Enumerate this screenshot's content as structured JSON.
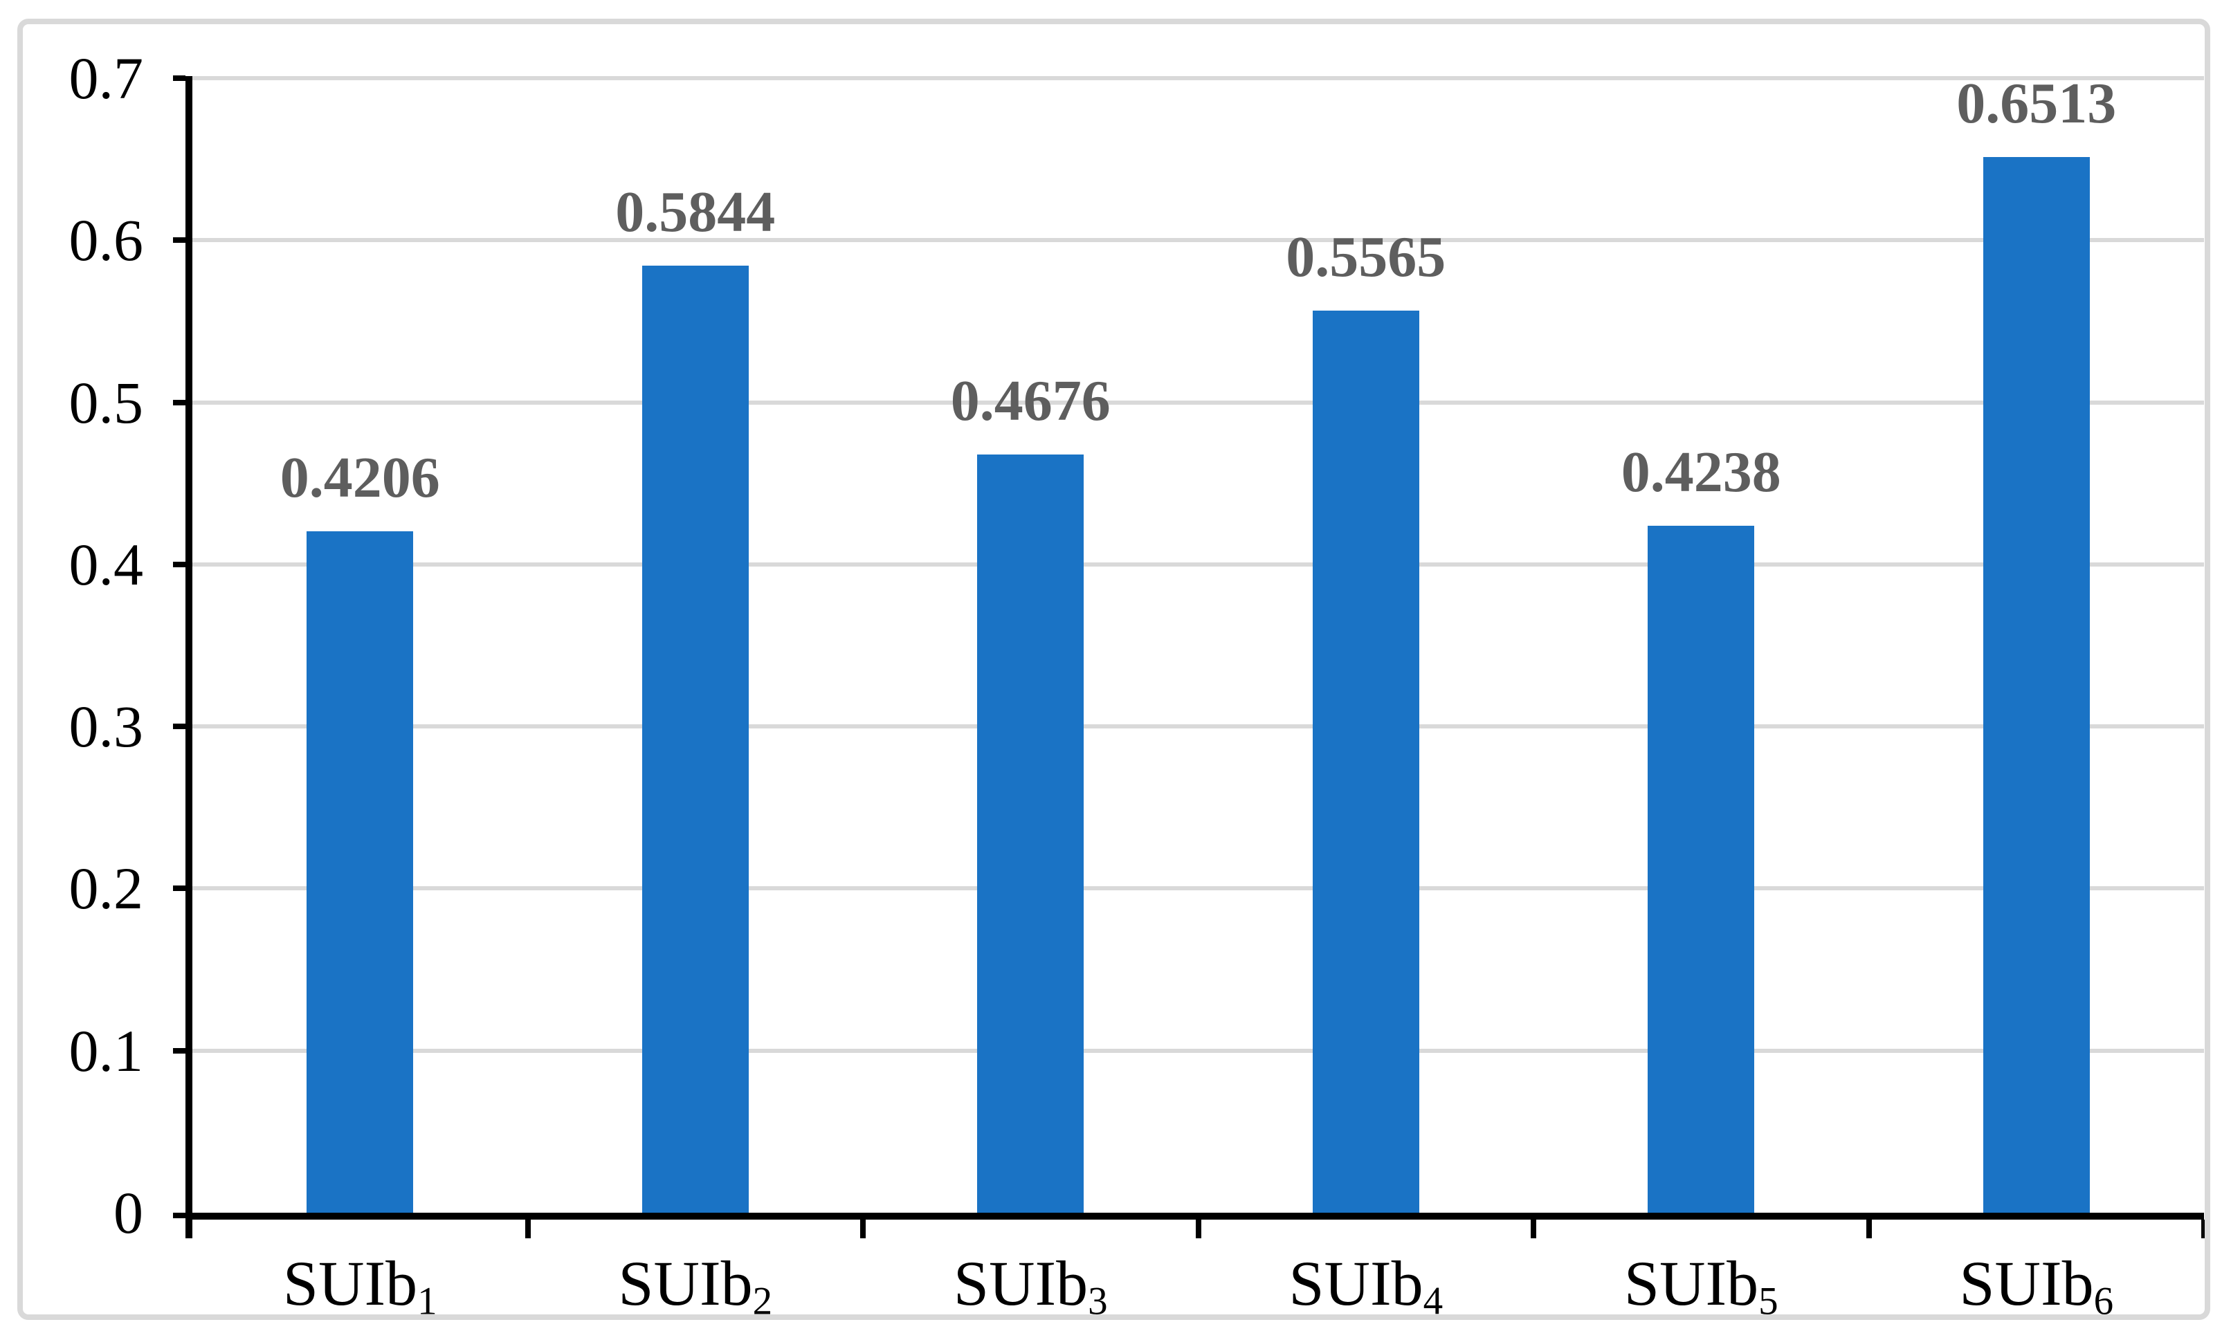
{
  "chart_data": {
    "type": "bar",
    "title": "",
    "xlabel": "",
    "ylabel": "",
    "categories": [
      {
        "base": "SUIb",
        "sub": "1"
      },
      {
        "base": "SUIb",
        "sub": "2"
      },
      {
        "base": "SUIb",
        "sub": "3"
      },
      {
        "base": "SUIb",
        "sub": "4"
      },
      {
        "base": "SUIb",
        "sub": "5"
      },
      {
        "base": "SUIb",
        "sub": "6"
      }
    ],
    "values": [
      0.4206,
      0.5844,
      0.4676,
      0.5565,
      0.4238,
      0.6513
    ],
    "data_labels": [
      "0.4206",
      "0.5844",
      "0.4676",
      "0.5565",
      "0.4238",
      "0.6513"
    ],
    "y_ticks": [
      "0",
      "0.1",
      "0.2",
      "0.3",
      "0.4",
      "0.5",
      "0.6",
      "0.7"
    ],
    "ylim": [
      0,
      0.7
    ],
    "grid": "horizontal",
    "legend": "none",
    "colors": {
      "bar": "#1A73C5",
      "data_label": "#5E5E5E",
      "gridline": "#D9D9D9",
      "axis": "#000000",
      "frame_border": "#D9D9D9",
      "background": "#FFFFFF"
    }
  }
}
